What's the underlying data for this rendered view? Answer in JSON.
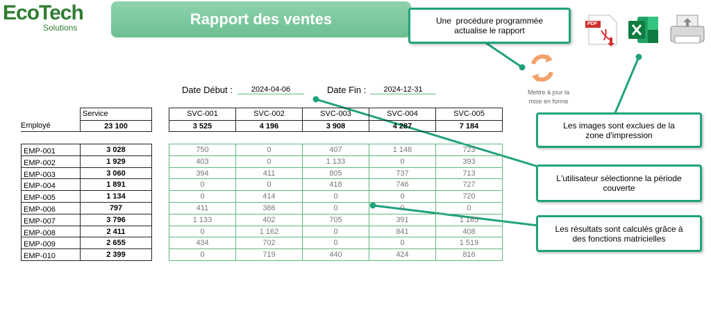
{
  "logo": {
    "name": "EcoTech",
    "tagline": "Solutions"
  },
  "title": "Rapport des ventes",
  "icons": {
    "pdf": "PDF"
  },
  "refresh": {
    "lines": [
      "Mettre à jour la",
      "mise en forme"
    ]
  },
  "callouts": [
    {
      "lines": [
        "Une  procédure programmée",
        "actualise le rapport"
      ]
    },
    {
      "lines": [
        "Les images sont exclues de la",
        "zone d'impression"
      ]
    },
    {
      "lines": [
        "L'utilisateur sélectionne la période",
        "couverte"
      ]
    },
    {
      "lines": [
        "Les résultats sont calculés grâce à",
        "des fonctions matricielles"
      ]
    }
  ],
  "dates": {
    "start_label": "Date Début :",
    "start": "2024-04-06",
    "end_label": "Date Fin :",
    "end": "2024-12-31"
  },
  "table": {
    "service_label": "Service",
    "employee_label": "Employé",
    "grand_total": "23 100",
    "services": [
      "SVC-001",
      "SVC-002",
      "SVC-003",
      "SVC-004",
      "SVC-005"
    ],
    "service_totals": [
      "3 525",
      "4 196",
      "3 908",
      "4 287",
      "7 184"
    ],
    "rows": [
      {
        "employee": "EMP-001",
        "total": "3 028",
        "values": [
          "750",
          "0",
          "407",
          "1 148",
          "723"
        ]
      },
      {
        "employee": "EMP-002",
        "total": "1 929",
        "values": [
          "403",
          "0",
          "1 133",
          "0",
          "393"
        ]
      },
      {
        "employee": "EMP-003",
        "total": "3 060",
        "values": [
          "394",
          "411",
          "805",
          "737",
          "713"
        ]
      },
      {
        "employee": "EMP-004",
        "total": "1 891",
        "values": [
          "0",
          "0",
          "418",
          "746",
          "727"
        ]
      },
      {
        "employee": "EMP-005",
        "total": "1 134",
        "values": [
          "0",
          "414",
          "0",
          "0",
          "720"
        ]
      },
      {
        "employee": "EMP-006",
        "total": "797",
        "values": [
          "411",
          "386",
          "0",
          "0",
          "0"
        ]
      },
      {
        "employee": "EMP-007",
        "total": "3 796",
        "values": [
          "1 133",
          "402",
          "705",
          "391",
          "1 165"
        ]
      },
      {
        "employee": "EMP-008",
        "total": "2 411",
        "values": [
          "0",
          "1 162",
          "0",
          "841",
          "408"
        ]
      },
      {
        "employee": "EMP-009",
        "total": "2 655",
        "values": [
          "434",
          "702",
          "0",
          "0",
          "1 519"
        ]
      },
      {
        "employee": "EMP-010",
        "total": "2 399",
        "values": [
          "0",
          "719",
          "440",
          "424",
          "816"
        ]
      }
    ]
  }
}
